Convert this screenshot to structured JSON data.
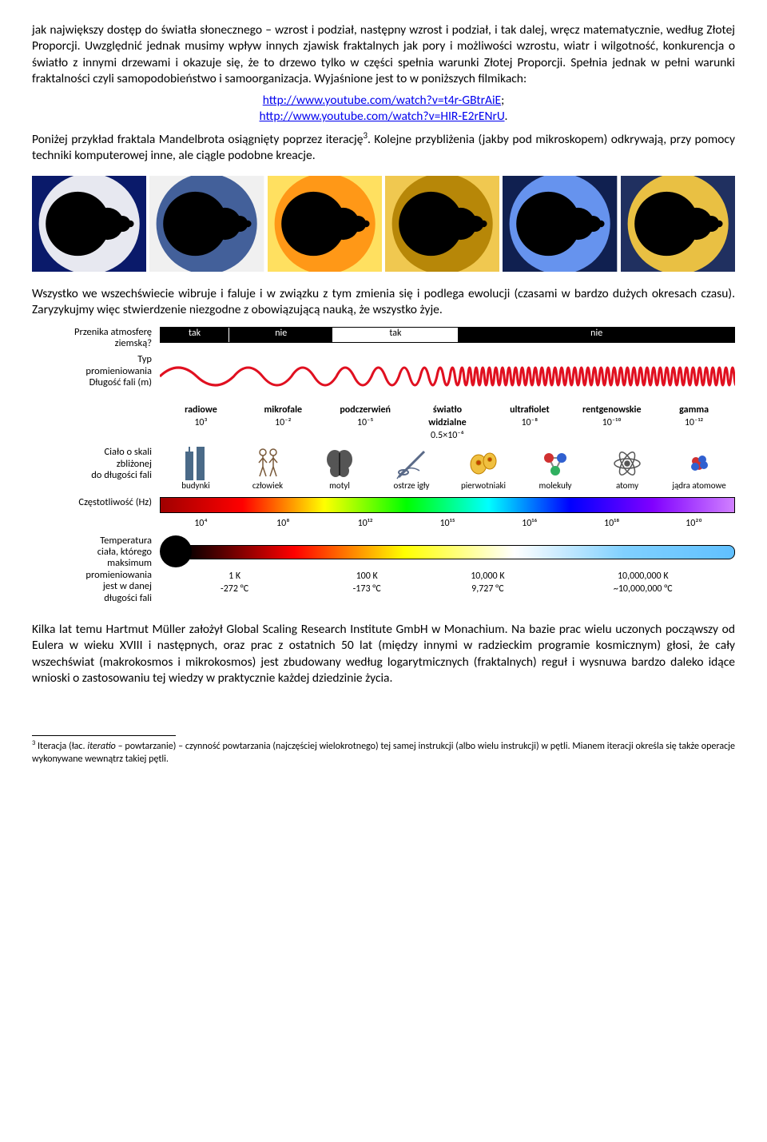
{
  "p1": "jak największy dostęp do światła słonecznego – wzrost i podział, następny wzrost i podział, i tak dalej, wręcz matematycznie, według Złotej Proporcji. Uwzględnić jednak musimy wpływ innych zjawisk fraktalnych jak pory i możliwości wzrostu, wiatr i wilgotność, konkurencja o światło z innymi drzewami i okazuje się, że to drzewo tylko w części spełnia warunki Złotej Proporcji. Spełnia jednak w pełni warunki fraktalności czyli samopodobieństwo i samoorganizacja. Wyjaśnione jest to w poniższych filmikach:",
  "link1_text": "http://www.youtube.com/watch?v=t4r-GBtrAiE",
  "link1_tail": ";",
  "link2_text": "http://www.youtube.com/watch?v=HIR-E2rENrU",
  "link2_tail": ".",
  "p2a": "Poniżej przykład fraktala Mandelbrota osiągnięty poprzez iterację",
  "p2sup": "3",
  "p2b": ". Kolejne przybliżenia (jakby pod mikroskopem) odkrywają, przy pomocy techniki komputerowej inne, ale ciągle podobne kreacje.",
  "p3": "Wszystko we wszechświecie wibruje i faluje i w związku z tym zmienia się i podlega ewolucji (czasami w bardzo dużych okresach czasu). Zaryzykujmy więc stwierdzenie niezgodne z obowiązującą nauką, że wszystko żyje.",
  "p4": "Kilka lat temu Hartmut Müller założył Global Scaling Research Institute GmbH w Monachium. Na bazie prac wielu uczonych począwszy od Eulera w wieku XVIII i następnych, oraz prac z ostatnich 50 lat (między innymi w radzieckim programie kosmicznym) głosi, że cały wszechświat (makrokosmos i mikrokosmos) jest zbudowany według logarytmicznych (fraktalnych) reguł i wysnuwa bardzo daleko idące wnioski o zastosowaniu tej wiedzy w praktycznie każdej dziedzinie życia.",
  "footnote_sup": "3",
  "footnote_a": " Iteracja (łac. ",
  "footnote_it": "iteratio",
  "footnote_b": " – powtarzanie) – czynność powtarzania (najczęściej wielokrotnego) tej samej instrukcji (albo wielu instrukcji) w pętli. Mianem iteracji określa się także operacje wykonywane wewnątrz takiej pętli.",
  "spectrum": {
    "row1_label": "Przenika atmosferę\nziemską?",
    "row1_bands": [
      {
        "w": 12,
        "bg": "#000",
        "fg": "#fff",
        "t": "tak",
        "border": "#fff"
      },
      {
        "w": 18,
        "bg": "#000",
        "fg": "#fff",
        "t": "nie"
      },
      {
        "w": 22,
        "bg": "#fff",
        "fg": "#000",
        "t": "tak",
        "border": "#000"
      },
      {
        "w": 48,
        "bg": "#000",
        "fg": "#fff",
        "t": "nie"
      }
    ],
    "row2_label": "Typ\npromieniowania\nDługość fali (m)",
    "row2_cols": [
      {
        "t": "radiowe",
        "v": "10³"
      },
      {
        "t": "mikrofale",
        "v": "10⁻²"
      },
      {
        "t": "podczerwień",
        "v": "10⁻⁵"
      },
      {
        "t": "światło\nwidzialne",
        "v": "0.5×10⁻⁶"
      },
      {
        "t": "ultrafiolet",
        "v": "10⁻⁸"
      },
      {
        "t": "rentgenowskie",
        "v": "10⁻¹⁰"
      },
      {
        "t": "gamma",
        "v": "10⁻¹²"
      }
    ],
    "wave_color": "#e01020",
    "row3_label": "Ciało o skali\nzbliżonej\ndo długości fali",
    "row3_icons": [
      {
        "name": "building-icon",
        "t": "budynki"
      },
      {
        "name": "human-icon",
        "t": "człowiek"
      },
      {
        "name": "butterfly-icon",
        "t": "motyl"
      },
      {
        "name": "needle-icon",
        "t": "ostrze igły"
      },
      {
        "name": "protozoa-icon",
        "t": "pierwotniaki"
      },
      {
        "name": "molecule-icon",
        "t": "molekuły"
      },
      {
        "name": "atom-icon",
        "t": "atomy"
      },
      {
        "name": "nucleus-icon",
        "t": "jądra atomowe"
      }
    ],
    "row4_label": "Częstotliwość (Hz)",
    "row4_vals": [
      "10⁴",
      "10⁸",
      "10¹²",
      "10¹⁵",
      "10¹⁶",
      "10¹⁸",
      "10²⁰"
    ],
    "row4_gradient": [
      "#a00000",
      "#ff0000",
      "#ffff00",
      "#00ff00",
      "#00ffff",
      "#0000ff",
      "#8000ff",
      "#d080ff"
    ],
    "row5_label": "Temperatura\nciała, którego\nmaksimum\npromieniowania\njest w danej\ndługości fali",
    "row5_vals": [
      {
        "t1": "1 K",
        "t2": "-272 °C"
      },
      {
        "t1": "100 K",
        "t2": "-173 °C"
      },
      {
        "t1": "10,000 K",
        "t2": "9,727 °C"
      },
      {
        "t1": "10,000,000 K",
        "t2": "~10,000,000 °C"
      }
    ],
    "row5_gradient": [
      "#000000",
      "#ff0000",
      "#ffff00",
      "#ffffff",
      "#80d0ff",
      "#60c0ff"
    ]
  },
  "fractal_tiles": [
    {
      "bg": "#0a1a6a",
      "fg": "#000",
      "halo": "#ffffff"
    },
    {
      "bg": "#f0f0f0",
      "fg": "#000",
      "halo": "#305090"
    },
    {
      "bg": "#ffe060",
      "fg": "#000",
      "halo": "#ff9010"
    },
    {
      "bg": "#f0c850",
      "fg": "#000",
      "halo": "#b08000"
    },
    {
      "bg": "#102050",
      "fg": "#000",
      "halo": "#70a0ff"
    },
    {
      "bg": "#203060",
      "fg": "#000",
      "halo": "#ffd040"
    }
  ]
}
